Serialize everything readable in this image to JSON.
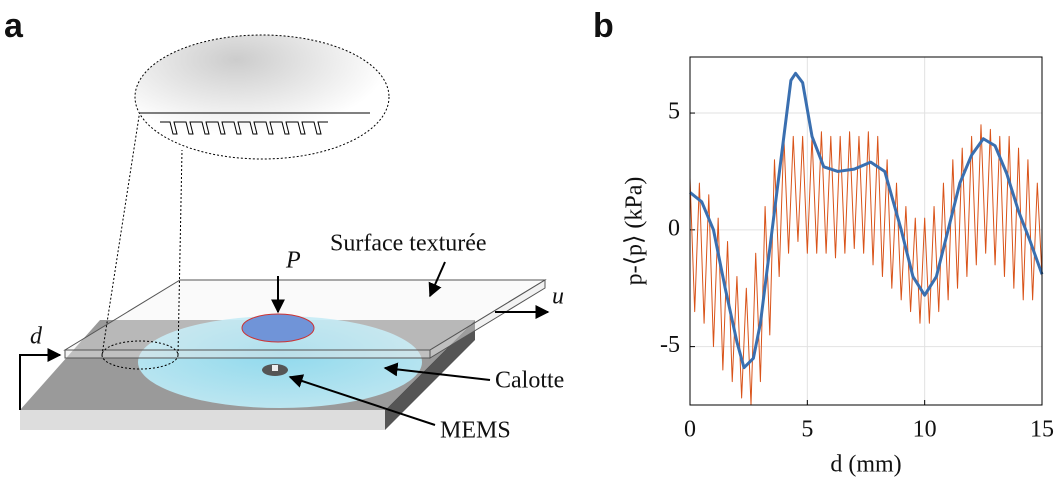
{
  "panel_a": {
    "label": "a",
    "texts": {
      "surface": "Surface texturée",
      "p": "P",
      "u": "u",
      "d": "d",
      "calotte": "Calotte",
      "mems": "MEMS"
    }
  },
  "chart_data": {
    "type": "line",
    "panel_label": "b",
    "x_label": "d (mm)",
    "y_label": "p-⟨p⟩ (kPa)",
    "xlim": [
      0,
      15
    ],
    "xticks": [
      0,
      5,
      10,
      15
    ],
    "ylim": [
      -7.5,
      7.4
    ],
    "yticks": [
      -5,
      0,
      5
    ],
    "grid": true,
    "series": [
      {
        "color": "#d95319",
        "width": 1,
        "x": [
          0,
          0.2,
          0.4,
          0.6,
          0.8,
          1,
          1.2,
          1.4,
          1.6,
          1.8,
          2,
          2.2,
          2.4,
          2.6,
          2.8,
          3,
          3.2,
          3.4,
          3.6,
          3.8,
          4,
          4.2,
          4.4,
          4.6,
          4.8,
          5,
          5.2,
          5.4,
          5.6,
          5.8,
          6,
          6.2,
          6.4,
          6.6,
          6.8,
          7,
          7.2,
          7.4,
          7.6,
          7.8,
          8,
          8.2,
          8.4,
          8.6,
          8.8,
          9,
          9.2,
          9.4,
          9.6,
          9.8,
          10,
          10.2,
          10.4,
          10.6,
          10.8,
          11,
          11.2,
          11.4,
          11.6,
          11.8,
          12,
          12.2,
          12.4,
          12.6,
          12.8,
          13,
          13.2,
          13.4,
          13.6,
          13.8,
          14,
          14.2,
          14.4,
          14.6,
          14.8,
          15
        ],
        "values": [
          2.2,
          -3.5,
          2,
          -4,
          1.5,
          -5,
          0.5,
          -6,
          -0.5,
          -6.5,
          -2,
          -7.2,
          -2.5,
          -7.5,
          -1,
          -6.5,
          1,
          -4.5,
          3,
          -2,
          4,
          -1,
          4,
          -0.5,
          4,
          -1,
          4,
          -1,
          4.2,
          -1,
          4,
          -1.2,
          4,
          -1,
          4.2,
          -0.8,
          4,
          -1,
          4.2,
          -1.5,
          4,
          -2,
          3,
          -2.5,
          2,
          -3,
          1,
          -3.5,
          0.5,
          -4,
          0.5,
          -4,
          1,
          -3.5,
          2,
          -3,
          3,
          -2.5,
          3.5,
          -2,
          4,
          -1.5,
          4.5,
          -1,
          4.3,
          -1.5,
          4,
          -2,
          4,
          -2.5,
          3.5,
          -3,
          3,
          -3,
          2,
          -2
        ]
      },
      {
        "color": "#3a6fb0",
        "width": 3,
        "x": [
          0,
          0.5,
          1,
          1.5,
          2,
          2.3,
          2.7,
          3,
          3.5,
          4,
          4.3,
          4.5,
          4.8,
          5.2,
          5.7,
          6.3,
          7,
          7.7,
          8.3,
          9,
          9.5,
          10,
          10.5,
          11,
          11.5,
          12,
          12.5,
          13,
          13.5,
          14,
          14.5,
          15
        ],
        "values": [
          1.6,
          1.2,
          0,
          -2.5,
          -4.8,
          -5.9,
          -5.5,
          -4,
          0,
          4,
          6.4,
          6.7,
          6.3,
          4,
          2.7,
          2.5,
          2.6,
          2.9,
          2.5,
          0,
          -2,
          -2.8,
          -2,
          0,
          2,
          3.2,
          3.9,
          3.6,
          2.4,
          0.8,
          -0.5,
          -1.9
        ]
      }
    ]
  }
}
